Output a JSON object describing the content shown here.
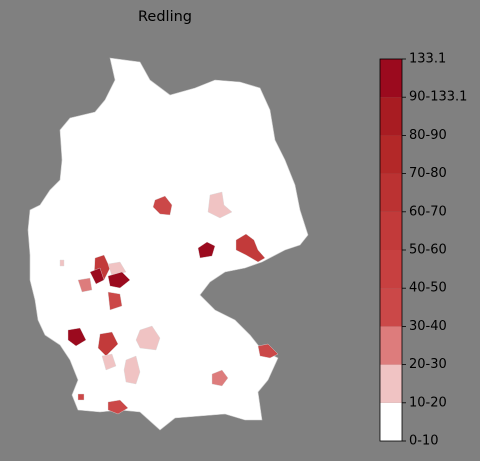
{
  "chart_data": {
    "type": "choropleth",
    "title": "Redling",
    "colorbar": {
      "labels": [
        "0-10",
        "10-20",
        "20-30",
        "30-40",
        "40-50",
        "50-60",
        "60-70",
        "70-80",
        "80-90",
        "90-133.1",
        "133.1"
      ],
      "colors": [
        "#ffffff",
        "#f0c3c3",
        "#dd7c7c",
        "#cb4848",
        "#c74040",
        "#c23a3a",
        "#bb3232",
        "#b32828",
        "#a81c22",
        "#9b0a1e"
      ]
    }
  }
}
